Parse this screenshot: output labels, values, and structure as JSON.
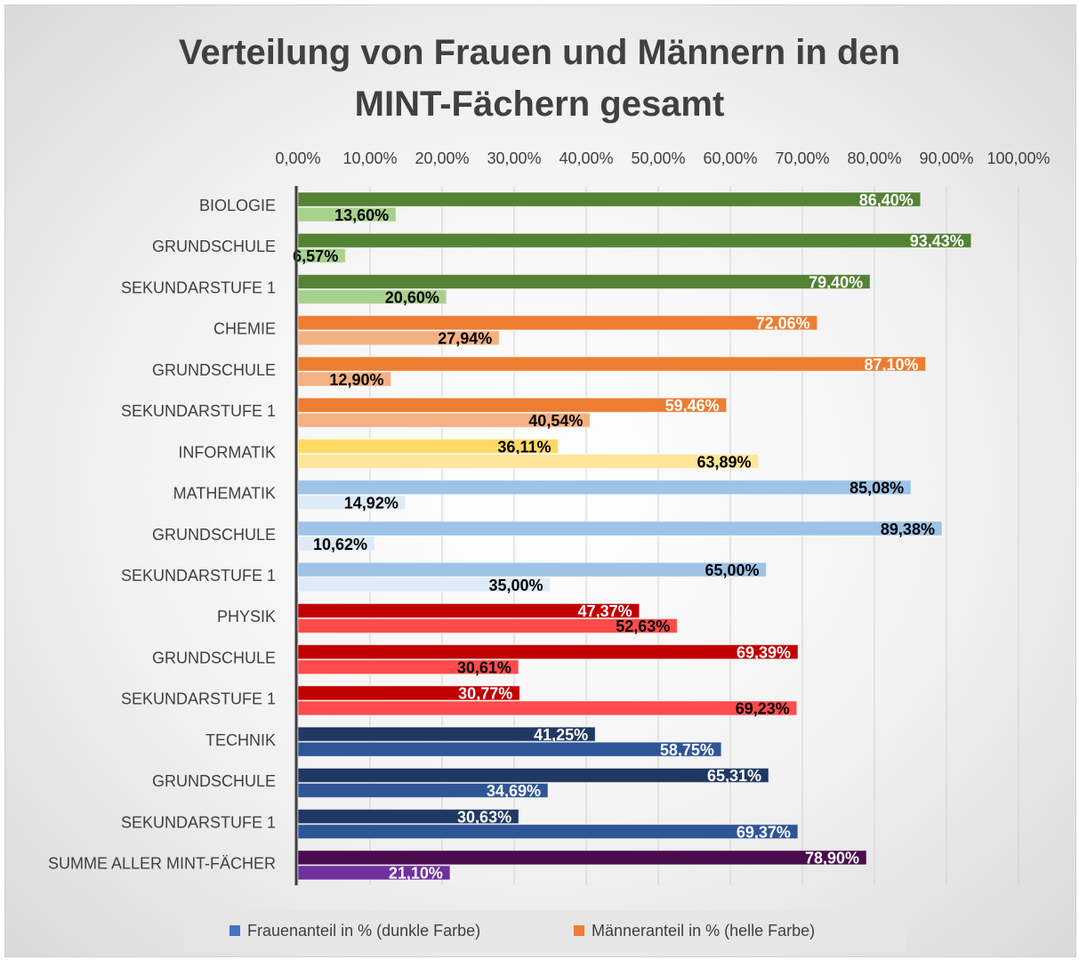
{
  "chart_data": {
    "type": "hbar",
    "title": "Verteilung von Frauen und Männern in den MINT-Fächern gesamt",
    "categories": [
      "BIOLOGIE",
      "GRUNDSCHULE",
      "SEKUNDARSTUFE 1",
      "CHEMIE",
      "GRUNDSCHULE",
      "SEKUNDARSTUFE 1",
      "INFORMATIK",
      "MATHEMATIK",
      "GRUNDSCHULE",
      "SEKUNDARSTUFE 1",
      "PHYSIK",
      "GRUNDSCHULE",
      "SEKUNDARSTUFE 1",
      "TECHNIK",
      "GRUNDSCHULE",
      "SEKUNDARSTUFE 1",
      "SUMME ALLER MINT-FÄCHER"
    ],
    "series": [
      {
        "name": "Frauenanteil in % (dunkle Farbe)",
        "color": "#4472c4",
        "values": [
          86.4,
          93.43,
          79.4,
          72.06,
          87.1,
          59.46,
          36.11,
          85.08,
          89.38,
          65.0,
          47.37,
          69.39,
          30.77,
          41.25,
          65.31,
          30.63,
          78.9
        ],
        "value_labels": [
          "86,40%",
          "93,43%",
          "79,40%",
          "72,06%",
          "87,10%",
          "59,46%",
          "36,11%",
          "85,08%",
          "89,38%",
          "65,00%",
          "47,37%",
          "69,39%",
          "30,77%",
          "41,25%",
          "65,31%",
          "30,63%",
          "78,90%"
        ],
        "colors": [
          "#548235",
          "#548235",
          "#548235",
          "#ed7d31",
          "#ed7d31",
          "#ed7d31",
          "#ffd966",
          "#9dc3e6",
          "#9dc3e6",
          "#9dc3e6",
          "#c00000",
          "#c00000",
          "#c00000",
          "#203864",
          "#203864",
          "#203864",
          "#4a0c4e"
        ],
        "label_colors": [
          "#ffffff",
          "#ffffff",
          "#ffffff",
          "#ffffff",
          "#ffffff",
          "#ffffff",
          "#000000",
          "#000000",
          "#000000",
          "#000000",
          "#ffffff",
          "#ffffff",
          "#ffffff",
          "#ffffff",
          "#ffffff",
          "#ffffff",
          "#ffffff"
        ]
      },
      {
        "name": "Männeranteil in % (helle Farbe)",
        "color": "#ed7d31",
        "values": [
          13.6,
          6.57,
          20.6,
          27.94,
          12.9,
          40.54,
          63.89,
          14.92,
          10.62,
          35.0,
          52.63,
          30.61,
          69.23,
          58.75,
          34.69,
          69.37,
          21.1
        ],
        "value_labels": [
          "13,60%",
          "6,57%",
          "20,60%",
          "27,94%",
          "12,90%",
          "40,54%",
          "63,89%",
          "14,92%",
          "10,62%",
          "35,00%",
          "52,63%",
          "30,61%",
          "69,23%",
          "58,75%",
          "34,69%",
          "69,37%",
          "21,10%"
        ],
        "colors": [
          "#a9d18e",
          "#a9d18e",
          "#a9d18e",
          "#f4b183",
          "#f4b183",
          "#f4b183",
          "#ffe699",
          "#deebf7",
          "#deebf7",
          "#deebf7",
          "#ff4b4b",
          "#ff4b4b",
          "#ff4b4b",
          "#2f5597",
          "#2f5597",
          "#2f5597",
          "#7030a0"
        ],
        "label_colors": [
          "#000000",
          "#000000",
          "#000000",
          "#000000",
          "#000000",
          "#000000",
          "#000000",
          "#000000",
          "#000000",
          "#000000",
          "#000000",
          "#000000",
          "#000000",
          "#ffffff",
          "#ffffff",
          "#ffffff",
          "#ffffff"
        ]
      }
    ],
    "xlim": [
      0,
      100
    ],
    "xticks": [
      {
        "value": 0,
        "label": "0,00%"
      },
      {
        "value": 10,
        "label": "10,00%"
      },
      {
        "value": 20,
        "label": "20,00%"
      },
      {
        "value": 30,
        "label": "30,00%"
      },
      {
        "value": 40,
        "label": "40,00%"
      },
      {
        "value": 50,
        "label": "50,00%"
      },
      {
        "value": 60,
        "label": "60,00%"
      },
      {
        "value": 70,
        "label": "70,00%"
      },
      {
        "value": 80,
        "label": "80,00%"
      },
      {
        "value": 90,
        "label": "90,00%"
      },
      {
        "value": 100,
        "label": "100,00%"
      }
    ],
    "grid": true,
    "legend": "bottom"
  }
}
